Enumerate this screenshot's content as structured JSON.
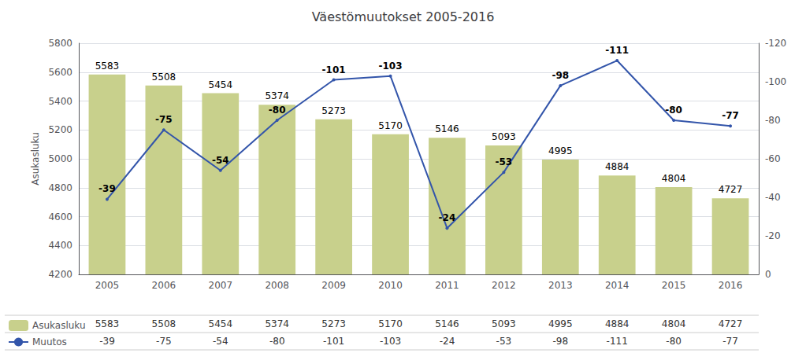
{
  "chart_data": {
    "type": "bar",
    "title": "Väestömuutokset 2005-2016",
    "categories": [
      2005,
      2006,
      2007,
      2008,
      2009,
      2010,
      2011,
      2012,
      2013,
      2014,
      2015,
      2016
    ],
    "ylabel": "Asukasluku",
    "ylim": [
      4200,
      5800
    ],
    "yticks": [
      4200,
      4400,
      4600,
      4800,
      5000,
      5200,
      5400,
      5600,
      5800
    ],
    "y2lim": [
      0,
      -120
    ],
    "y2ticks": [
      0,
      -20,
      -40,
      -60,
      -80,
      -100,
      -120
    ],
    "grid": true,
    "legend": "bottom",
    "data_labels": true,
    "series": [
      {
        "name": "Asukasluku",
        "type": "bar",
        "color": "#c8d08c",
        "values": [
          5583,
          5508,
          5454,
          5374,
          5273,
          5170,
          5146,
          5093,
          4995,
          4884,
          4804,
          4727
        ]
      },
      {
        "name": "Muutos",
        "type": "line",
        "axis": "y2",
        "color": "#3355aa",
        "values": [
          -39,
          -75,
          -54,
          -80,
          -101,
          -103,
          -24,
          -53,
          -98,
          -111,
          -80,
          -77
        ]
      }
    ]
  }
}
